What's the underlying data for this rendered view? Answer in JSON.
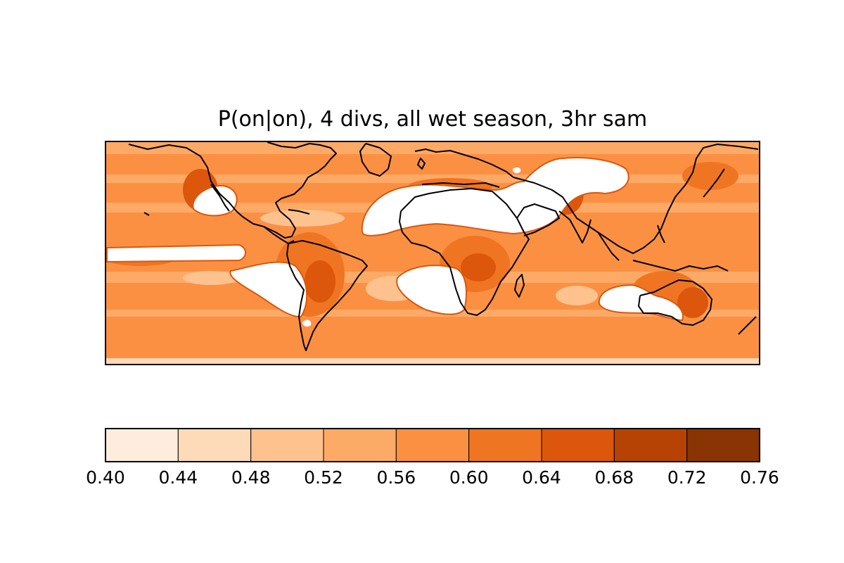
{
  "title": "P(on|on), 4 divs, all wet season, 3hr sam",
  "colorbar": {
    "levels": [
      0.4,
      0.44,
      0.48,
      0.52,
      0.56,
      0.6,
      0.64,
      0.68,
      0.72,
      0.76
    ],
    "tick_labels": [
      "0.40",
      "0.44",
      "0.48",
      "0.52",
      "0.56",
      "0.60",
      "0.64",
      "0.68",
      "0.72",
      "0.76"
    ],
    "colors": [
      "#feeddc",
      "#fddab8",
      "#fdc28e",
      "#fdaa67",
      "#fb9043",
      "#f07522",
      "#dc560c",
      "#b64303",
      "#8a3303"
    ]
  },
  "map": {
    "projection": "equirectangular (global)",
    "field_fill_color": "#fb9043",
    "missing_color": "#ffffff",
    "coastline_color": "#000000"
  }
}
